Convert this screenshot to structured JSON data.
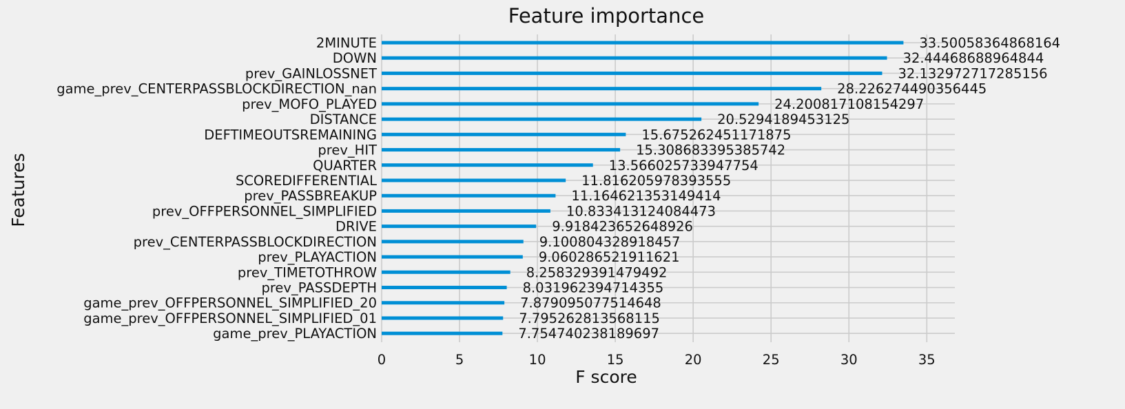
{
  "chart_data": {
    "type": "bar",
    "orientation": "horizontal",
    "title": "Feature importance",
    "xlabel": "F score",
    "ylabel": "Features",
    "xlim": [
      0,
      36.8
    ],
    "xticks": [
      0,
      5,
      10,
      15,
      20,
      25,
      30,
      35
    ],
    "grid": true,
    "bar_color": "#008fd5",
    "categories": [
      "2MINUTE",
      "DOWN",
      "prev_GAINLOSSNET",
      "game_prev_CENTERPASSBLOCKDIRECTION_nan",
      "prev_MOFO_PLAYED",
      "DISTANCE",
      "DEFTIMEOUTSREMAINING",
      "prev_HIT",
      "QUARTER",
      "SCOREDIFFERENTIAL",
      "prev_PASSBREAKUP",
      "prev_OFFPERSONNEL_SIMPLIFIED",
      "DRIVE",
      "prev_CENTERPASSBLOCKDIRECTION",
      "prev_PLAYACTION",
      "prev_TIMETOTHROW",
      "prev_PASSDEPTH",
      "game_prev_OFFPERSONNEL_SIMPLIFIED_20",
      "game_prev_OFFPERSONNEL_SIMPLIFIED_01",
      "game_prev_PLAYACTION"
    ],
    "values": [
      33.50058364868164,
      32.44468688964844,
      32.132972717285156,
      28.226274490356445,
      24.200817108154297,
      20.5294189453125,
      15.675262451171875,
      15.308683395385742,
      13.566025733947754,
      11.816205978393555,
      11.164621353149414,
      10.833413124084473,
      9.918423652648926,
      9.100804328918457,
      9.060286521911621,
      8.258329391479492,
      8.031962394714355,
      7.879095077514648,
      7.795262813568115,
      7.754740238189697
    ],
    "value_labels": [
      "33.50058364868164",
      "32.44468688964844",
      "32.132972717285156",
      "28.226274490356445",
      "24.200817108154297",
      "20.5294189453125",
      "15.675262451171875",
      "15.308683395385742",
      "13.566025733947754",
      "11.816205978393555",
      "11.164621353149414",
      "10.833413124084473",
      "9.918423652648926",
      "9.100804328918457",
      "9.060286521911621",
      "8.258329391479492",
      "8.031962394714355",
      "7.879095077514648",
      "7.795262813568115",
      "7.754740238189697"
    ]
  }
}
